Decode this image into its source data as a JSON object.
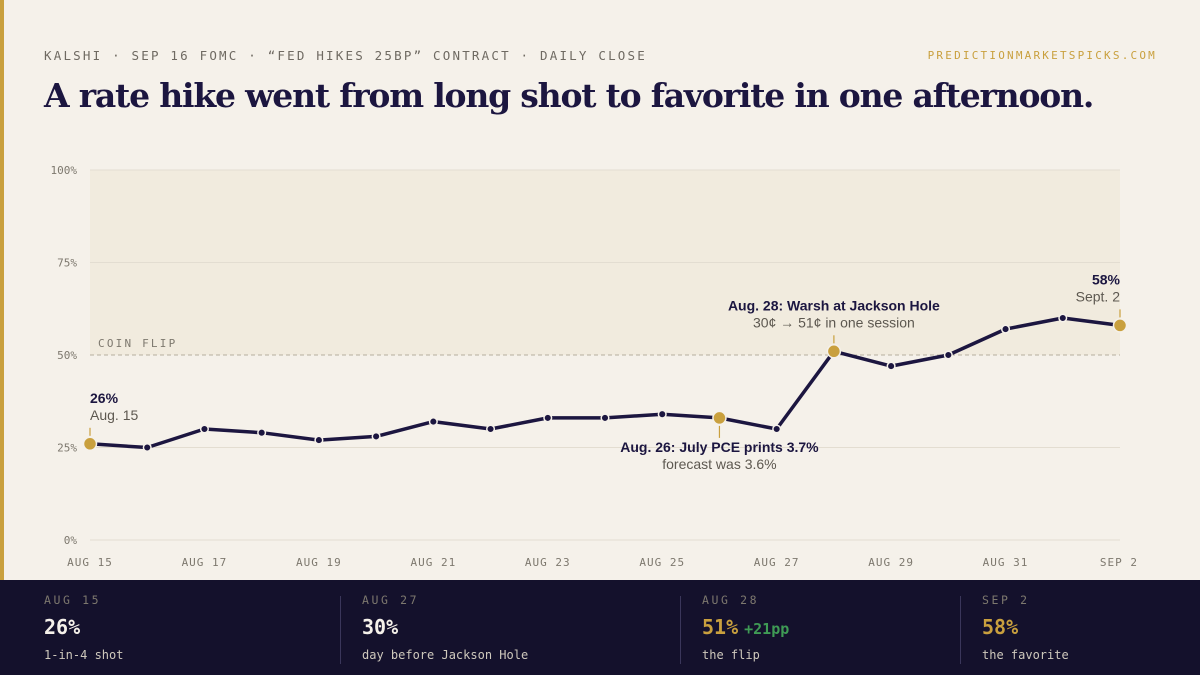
{
  "header": {
    "kicker": "KALSHI · SEP 16 FOMC · “FED HIKES 25BP” CONTRACT · DAILY CLOSE",
    "source": "PREDICTIONMARKETSPICKS.COM",
    "headline": "A rate hike went from long shot to favorite in one afternoon."
  },
  "colors": {
    "background": "#f5f1ea",
    "line": "#1c1640",
    "accent": "#c9a03e",
    "footer": "#14112c",
    "positive": "#3f9b55"
  },
  "chart_data": {
    "type": "line",
    "x": [
      "Aug 15",
      "Aug 16",
      "Aug 17",
      "Aug 18",
      "Aug 19",
      "Aug 20",
      "Aug 21",
      "Aug 22",
      "Aug 23",
      "Aug 24",
      "Aug 25",
      "Aug 26",
      "Aug 27",
      "Aug 28",
      "Aug 29",
      "Aug 30",
      "Aug 31",
      "Sep 1",
      "Sep 2"
    ],
    "series": [
      {
        "values": [
          26,
          25,
          30,
          29,
          27,
          28,
          32,
          30,
          33,
          33,
          34,
          33,
          30,
          51,
          47,
          50,
          57,
          60,
          58
        ]
      }
    ],
    "highlight_indices": [
      0,
      11,
      13,
      18
    ],
    "ylim": [
      0,
      100
    ],
    "y_ticks": [
      0,
      25,
      50,
      75,
      100
    ],
    "y_tick_labels": [
      "0%",
      "25%",
      "50%",
      "75%",
      "100%"
    ],
    "x_tick_indices": [
      0,
      2,
      4,
      6,
      8,
      10,
      12,
      14,
      16,
      18
    ],
    "x_tick_labels": [
      "AUG 15",
      "AUG 17",
      "AUG 19",
      "AUG 21",
      "AUG 23",
      "AUG 25",
      "AUG 27",
      "AUG 29",
      "AUG 31",
      "SEP 2"
    ],
    "reference_line": {
      "value": 50,
      "label": "COIN FLIP"
    },
    "shaded_band": [
      50,
      100
    ],
    "grid": true,
    "annotations": [
      {
        "index": 0,
        "title": "26%",
        "subtitle": "Aug. 15"
      },
      {
        "index": 11,
        "title": "Aug. 26: July PCE prints 3.7%",
        "subtitle": "forecast was 3.6%"
      },
      {
        "index": 13,
        "title": "Aug. 28: Warsh at Jackson Hole",
        "subtitle": "30¢ → 51¢ in one session"
      },
      {
        "index": 18,
        "title": "58%",
        "subtitle": "Sept. 2"
      }
    ]
  },
  "footer": {
    "stats": [
      {
        "date": "AUG 15",
        "value": "26%",
        "change": "",
        "caption": "1-in-4 shot"
      },
      {
        "date": "AUG 27",
        "value": "30%",
        "change": "",
        "caption": "day before Jackson Hole"
      },
      {
        "date": "AUG 28",
        "value": "51%",
        "change": "+21pp",
        "caption": "the flip"
      },
      {
        "date": "SEP 2",
        "value": "58%",
        "change": "",
        "caption": "the favorite"
      }
    ]
  }
}
